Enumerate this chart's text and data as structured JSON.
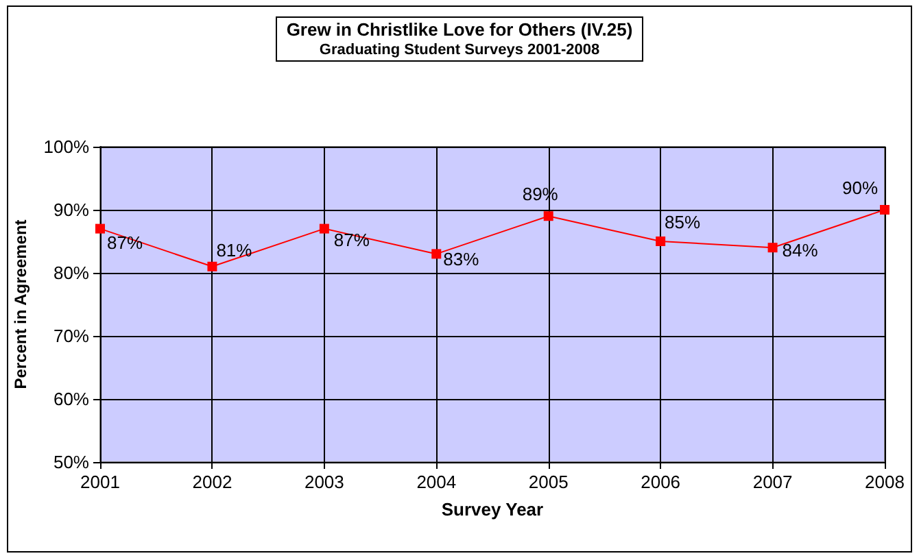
{
  "chart_data": {
    "type": "line",
    "title": "Grew in Christlike Love for Others (IV.25)",
    "subtitle": "Graduating Student Surveys 2001-2008",
    "xlabel": "Survey Year",
    "ylabel": "Percent in Agreement",
    "categories": [
      "2001",
      "2002",
      "2003",
      "2004",
      "2005",
      "2006",
      "2007",
      "2008"
    ],
    "series": [
      {
        "color": "#ff0000",
        "values": [
          87,
          81,
          87,
          83,
          89,
          85,
          84,
          90
        ],
        "value_labels": [
          "87%",
          "81%",
          "87%",
          "83%",
          "89%",
          "85%",
          "84%",
          "90%"
        ]
      }
    ],
    "ylim": [
      50,
      100
    ],
    "yticks": [
      {
        "value": 50,
        "label": "50%"
      },
      {
        "value": 60,
        "label": "60%"
      },
      {
        "value": 70,
        "label": "70%"
      },
      {
        "value": 80,
        "label": "80%"
      },
      {
        "value": 90,
        "label": "90%"
      },
      {
        "value": 100,
        "label": "100%"
      }
    ],
    "grid": true,
    "marker": "square",
    "line_style": "solid"
  }
}
